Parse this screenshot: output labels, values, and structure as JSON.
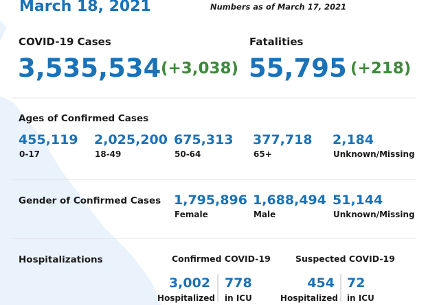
{
  "header": {
    "title": "March 18, 2021",
    "as_of": "Numbers as of March 17, 2021"
  },
  "totals": {
    "cases": {
      "label": "COVID-19 Cases",
      "value": "3,535,534",
      "change": "(+3,038)"
    },
    "fatalities": {
      "label": "Fatalities",
      "value": "55,795",
      "change": "(+218)"
    }
  },
  "ages": {
    "title": "Ages of Confirmed Cases",
    "groups": [
      {
        "value": "455,119",
        "label": "0-17"
      },
      {
        "value": "2,025,200",
        "label": "18-49"
      },
      {
        "value": "675,313",
        "label": "50-64"
      },
      {
        "value": "377,718",
        "label": "65+"
      },
      {
        "value": "2,184",
        "label": "Unknown/Missing"
      }
    ]
  },
  "gender": {
    "title": "Gender of Confirmed Cases",
    "groups": [
      {
        "value": "1,795,896",
        "label": "Female"
      },
      {
        "value": "1,688,494",
        "label": "Male"
      },
      {
        "value": "51,144",
        "label": "Unknown/Missing"
      }
    ]
  },
  "hospitalizations": {
    "title": "Hospitalizations",
    "confirmed": {
      "title": "Confirmed COVID-19",
      "hospitalized": "3,002",
      "hospitalized_label": "Hospitalized",
      "icu": "778",
      "icu_label": "in ICU"
    },
    "suspected": {
      "title": "Suspected COVID-19",
      "hospitalized": "454",
      "hospitalized_label": "Hospitalized",
      "icu": "72",
      "icu_label": "in ICU"
    }
  }
}
